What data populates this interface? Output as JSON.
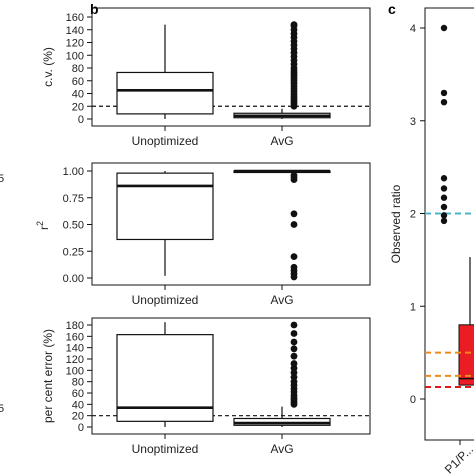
{
  "panels": {
    "b": "b",
    "c": "c"
  },
  "colors": {
    "line": "#111111",
    "point": "#111111",
    "cyan": "#4bb6c8",
    "orange": "#f08a1c",
    "red": "#e0161b",
    "dashed": "#111111",
    "boxRed": "#ea1c24"
  },
  "chart_data": [
    {
      "type": "box",
      "ylabel": "c.v. (%)",
      "categories": [
        "Unoptimized",
        "AvG"
      ],
      "ylim": [
        0,
        160
      ],
      "yticks": [
        0,
        20,
        40,
        60,
        80,
        100,
        120,
        140,
        160
      ],
      "reference_line": 20,
      "boxes": [
        {
          "name": "Unoptimized",
          "whisker_low": 0,
          "q1": 8,
          "median": 45,
          "q3": 73,
          "whisker_high": 148,
          "outliers": []
        },
        {
          "name": "AvG",
          "whisker_low": 0,
          "q1": 2,
          "median": 5,
          "q3": 9,
          "whisker_high": 16,
          "outliers": [
            20,
            24,
            28,
            32,
            36,
            40,
            44,
            48,
            52,
            56,
            60,
            64,
            68,
            72,
            76,
            80,
            86,
            92,
            98,
            104,
            110,
            116,
            122,
            128,
            134,
            140,
            146,
            148
          ]
        }
      ]
    },
    {
      "type": "box",
      "ylabel": "r²",
      "categories": [
        "Unoptimized",
        "AvG"
      ],
      "ylim": [
        0,
        1.0
      ],
      "yticks": [
        "0.00",
        "0.25",
        "0.50",
        "0.75",
        "1.00"
      ],
      "ytick_values": [
        0,
        0.25,
        0.5,
        0.75,
        1.0
      ],
      "boxes": [
        {
          "name": "Unoptimized",
          "whisker_low": 0.02,
          "q1": 0.36,
          "median": 0.86,
          "q3": 0.98,
          "whisker_high": 1.0,
          "outliers": []
        },
        {
          "name": "AvG",
          "whisker_low": 0.99,
          "q1": 0.995,
          "median": 1.0,
          "q3": 1.0,
          "whisker_high": 1.0,
          "outliers": [
            0.96,
            0.94,
            0.92,
            0.6,
            0.5,
            0.2,
            0.1,
            0.07,
            0.04,
            0.01
          ]
        }
      ]
    },
    {
      "type": "box",
      "ylabel": "per cent error (%)",
      "categories": [
        "Unoptimized",
        "AvG"
      ],
      "ylim": [
        0,
        180
      ],
      "yticks": [
        0,
        20,
        40,
        60,
        80,
        100,
        120,
        140,
        160,
        180
      ],
      "reference_line": 20,
      "boxes": [
        {
          "name": "Unoptimized",
          "whisker_low": 0,
          "q1": 10,
          "median": 34,
          "q3": 163,
          "whisker_high": 185,
          "outliers": []
        },
        {
          "name": "AvG",
          "whisker_low": 0,
          "q1": 3,
          "median": 7,
          "q3": 15,
          "whisker_high": 36,
          "outliers": [
            40,
            44,
            48,
            52,
            56,
            62,
            68,
            74,
            80,
            88,
            96,
            104,
            112,
            125,
            138,
            150,
            165,
            180
          ]
        }
      ]
    },
    {
      "type": "box",
      "ylabel": "Observed ratio",
      "categories": [
        "P1/P..."
      ],
      "ylim": [
        0,
        4
      ],
      "yticks": [
        0,
        1,
        2,
        3,
        4
      ],
      "reference_lines": [
        {
          "value": 2.0,
          "color": "cyan"
        },
        {
          "value": 0.5,
          "color": "orange"
        },
        {
          "value": 0.25,
          "color": "orange"
        },
        {
          "value": 0.13,
          "color": "red"
        }
      ],
      "boxes": [
        {
          "name": "P1/P...",
          "q1": 0.15,
          "median": 0.22,
          "q3": 0.8,
          "whisker_high": 1.53,
          "color": "boxRed",
          "outliers": [
            4.0,
            3.3,
            3.2,
            2.38,
            2.27,
            2.17,
            2.07,
            1.98,
            1.92
          ]
        }
      ]
    }
  ]
}
